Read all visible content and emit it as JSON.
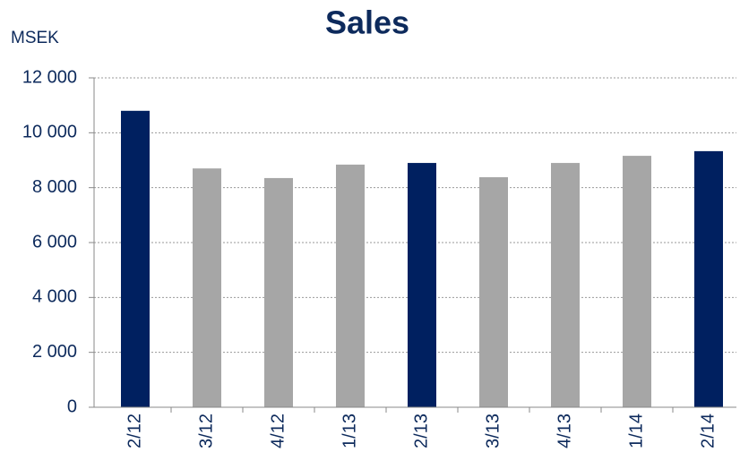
{
  "chart_data": {
    "type": "bar",
    "title": "Sales",
    "y_label": "MSEK",
    "categories": [
      "2/12",
      "3/12",
      "4/12",
      "1/13",
      "2/13",
      "3/13",
      "4/13",
      "1/14",
      "2/14"
    ],
    "values": [
      10800,
      8700,
      8350,
      8840,
      8900,
      8380,
      8900,
      9160,
      9330
    ],
    "colors": [
      "#002060",
      "#a6a6a6",
      "#a6a6a6",
      "#a6a6a6",
      "#002060",
      "#a6a6a6",
      "#a6a6a6",
      "#a6a6a6",
      "#002060"
    ],
    "ylim": [
      0,
      12000
    ],
    "yticks": [
      0,
      {
        "value": 2000,
        "label": "2 000"
      },
      {
        "value": 4000,
        "label": "4 000"
      },
      {
        "value": 6000,
        "label": "6 000"
      },
      {
        "value": 8000,
        "label": "8 000"
      },
      {
        "value": 10000,
        "label": "10 000"
      },
      {
        "value": 12000,
        "label": "12 000"
      }
    ],
    "grid": true
  }
}
